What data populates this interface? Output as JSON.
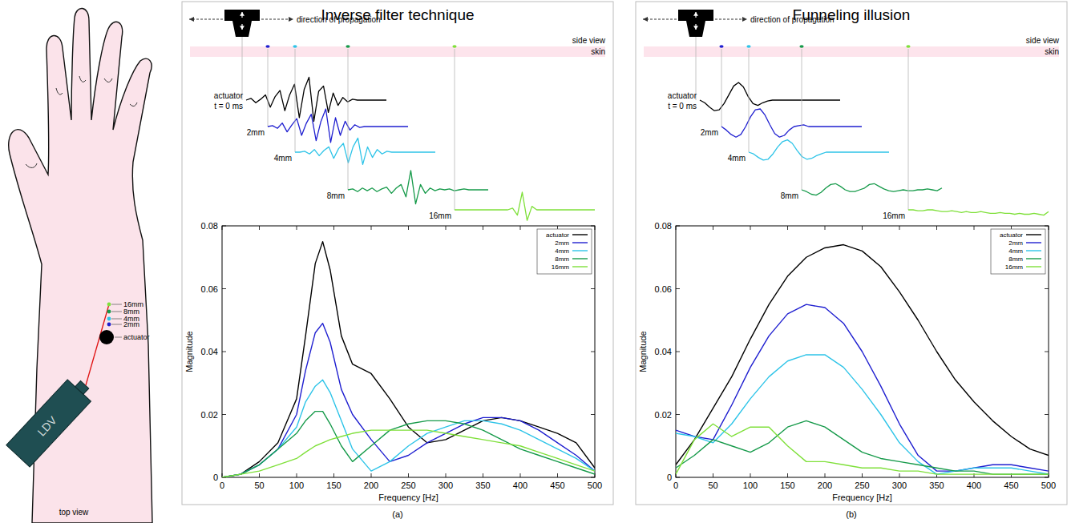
{
  "figure": {
    "arm": {
      "labels": [
        "16mm",
        "8mm",
        "4mm",
        "2mm",
        "actuator"
      ],
      "device": "LDV",
      "view": "top view"
    },
    "panels": [
      {
        "title": "Inverse filter technique",
        "caption": "(a)",
        "propagation": "direction of propagation",
        "side_view": "side view",
        "skin": "skin",
        "traces": [
          {
            "label": "actuator",
            "sublabel": "t = 0 ms",
            "color": "#000000",
            "values": [
              0,
              0.1,
              -0.15,
              0.05,
              0.3,
              -0.4,
              0.2,
              0.55,
              -0.6,
              0.3,
              0.9,
              -1.0,
              0.6,
              1.3,
              -1.2,
              0.5,
              0.8,
              -0.7,
              0.4,
              -0.3,
              0.15,
              -0.1,
              0.05,
              0,
              0,
              0,
              0,
              0,
              0,
              0
            ]
          },
          {
            "label": "2mm",
            "color": "#1f1fd0",
            "values": [
              0,
              0.05,
              -0.1,
              0.2,
              -0.3,
              0.1,
              0.45,
              -0.5,
              0.2,
              0.7,
              -0.8,
              0.3,
              1.0,
              -0.9,
              0.5,
              -0.5,
              0.3,
              -0.2,
              0.1,
              -0.05,
              0,
              0,
              0,
              0,
              0,
              0,
              0,
              0,
              0,
              0
            ]
          },
          {
            "label": "4mm",
            "color": "#2ec4e8",
            "values": [
              0,
              0,
              0.05,
              -0.1,
              0.15,
              -0.2,
              0.1,
              0.3,
              -0.35,
              0.2,
              0.5,
              -0.6,
              0.3,
              0.8,
              -0.7,
              0.3,
              -0.3,
              0.15,
              -0.1,
              0.05,
              0,
              0,
              0,
              0,
              0,
              0,
              0,
              0,
              0,
              0
            ]
          },
          {
            "label": "8mm",
            "color": "#169a4a",
            "values": [
              0,
              0.05,
              -0.1,
              0.1,
              -0.05,
              0.1,
              -0.1,
              0.05,
              0.15,
              -0.2,
              0.1,
              0.3,
              -0.4,
              1.1,
              -0.8,
              0.3,
              -0.2,
              0.1,
              -0.05,
              0.05,
              0,
              0.05,
              -0.05,
              0,
              0.05,
              0,
              0,
              0,
              0,
              0
            ]
          },
          {
            "label": "16mm",
            "color": "#7fe03a",
            "values": [
              0,
              0,
              0,
              0,
              0,
              0,
              0,
              0,
              0,
              0,
              0,
              0,
              0.1,
              -0.3,
              1.0,
              -0.6,
              0.2,
              0,
              0,
              0,
              0,
              0,
              0,
              0,
              0,
              0,
              0,
              0,
              0,
              0
            ]
          }
        ]
      },
      {
        "title": "Funneling illusion",
        "caption": "(b)",
        "propagation": "direction of propagation",
        "side_view": "side view",
        "skin": "skin",
        "traces": [
          {
            "label": "actuator",
            "sublabel": "t = 0 ms",
            "color": "#000000",
            "values": [
              0,
              -0.15,
              -0.4,
              -0.6,
              -0.55,
              -0.2,
              0.3,
              0.8,
              1.0,
              0.75,
              0.2,
              -0.2,
              -0.3,
              -0.15,
              -0.05,
              0,
              0,
              0,
              0,
              0,
              0,
              0,
              0,
              0,
              0,
              0,
              0,
              0,
              0,
              0
            ]
          },
          {
            "label": "2mm",
            "color": "#1f1fd0",
            "values": [
              0,
              -0.2,
              -0.45,
              -0.6,
              -0.45,
              0,
              0.55,
              0.95,
              1.0,
              0.65,
              0.1,
              -0.4,
              -0.6,
              -0.5,
              -0.2,
              0,
              0.05,
              0.1,
              0,
              0,
              0,
              0,
              0,
              0,
              0,
              0,
              0,
              0,
              0,
              0
            ]
          },
          {
            "label": "4mm",
            "color": "#2ec4e8",
            "values": [
              0,
              -0.1,
              -0.3,
              -0.45,
              -0.4,
              -0.1,
              0.3,
              0.6,
              0.7,
              0.5,
              0.1,
              -0.25,
              -0.4,
              -0.35,
              -0.2,
              -0.1,
              0,
              0,
              0,
              0,
              0,
              0,
              0,
              0,
              0,
              0,
              0,
              0,
              0,
              0
            ]
          },
          {
            "label": "8mm",
            "color": "#169a4a",
            "values": [
              0,
              -0.1,
              -0.25,
              -0.3,
              -0.15,
              0.1,
              0.3,
              0.35,
              0.2,
              0,
              -0.1,
              -0.1,
              0,
              0.1,
              0.3,
              0.35,
              0.2,
              0.05,
              -0.05,
              -0.1,
              -0.05,
              0,
              -0.05,
              -0.05,
              0,
              0,
              0.05,
              0,
              -0.05,
              0.1
            ]
          },
          {
            "label": "16mm",
            "color": "#7fe03a",
            "values": [
              0,
              0,
              -0.05,
              -0.05,
              0,
              0,
              -0.05,
              -0.1,
              -0.1,
              -0.05,
              -0.1,
              -0.15,
              -0.1,
              -0.15,
              -0.15,
              -0.1,
              -0.15,
              -0.2,
              -0.2,
              -0.15,
              -0.2,
              -0.2,
              -0.25,
              -0.2,
              -0.25,
              -0.25,
              -0.2,
              -0.25,
              -0.3,
              -0.1
            ]
          }
        ]
      }
    ]
  },
  "chart_data": [
    {
      "type": "line",
      "x_label": "Frequency [Hz]",
      "y_label": "Magnitude",
      "legend": "upper right",
      "grid": false,
      "xlim": [
        0,
        500
      ],
      "ylim": [
        0,
        0.08
      ],
      "xticks": [
        0,
        50,
        100,
        150,
        200,
        250,
        300,
        350,
        400,
        450,
        500
      ],
      "yticks": [
        0,
        0.02,
        0.04,
        0.06,
        0.08
      ],
      "x": [
        0,
        25,
        50,
        75,
        100,
        112,
        125,
        135,
        145,
        160,
        175,
        200,
        225,
        250,
        275,
        300,
        325,
        350,
        375,
        400,
        425,
        450,
        475,
        500
      ],
      "series": [
        {
          "name": "actuator",
          "color": "#000000",
          "values": [
            0,
            0.001,
            0.005,
            0.011,
            0.025,
            0.045,
            0.068,
            0.075,
            0.066,
            0.045,
            0.036,
            0.033,
            0.025,
            0.016,
            0.011,
            0.012,
            0.015,
            0.018,
            0.019,
            0.018,
            0.016,
            0.014,
            0.011,
            0.003
          ]
        },
        {
          "name": "2mm",
          "color": "#1f1fd0",
          "values": [
            0,
            0.001,
            0.004,
            0.009,
            0.02,
            0.034,
            0.046,
            0.049,
            0.043,
            0.028,
            0.02,
            0.012,
            0.005,
            0.007,
            0.011,
            0.014,
            0.017,
            0.019,
            0.019,
            0.018,
            0.015,
            0.011,
            0.007,
            0.002
          ]
        },
        {
          "name": "4mm",
          "color": "#2ec4e8",
          "values": [
            0,
            0.001,
            0.004,
            0.009,
            0.016,
            0.024,
            0.029,
            0.031,
            0.027,
            0.018,
            0.009,
            0.002,
            0.005,
            0.01,
            0.014,
            0.016,
            0.018,
            0.018,
            0.017,
            0.015,
            0.012,
            0.009,
            0.006,
            0.002
          ]
        },
        {
          "name": "8mm",
          "color": "#169a4a",
          "values": [
            0,
            0.001,
            0.004,
            0.009,
            0.014,
            0.018,
            0.021,
            0.021,
            0.017,
            0.01,
            0.005,
            0.01,
            0.015,
            0.017,
            0.018,
            0.018,
            0.017,
            0.015,
            0.012,
            0.009,
            0.007,
            0.005,
            0.003,
            0.001
          ]
        },
        {
          "name": "16mm",
          "color": "#7fe03a",
          "values": [
            0,
            0.001,
            0.002,
            0.004,
            0.006,
            0.008,
            0.01,
            0.011,
            0.012,
            0.013,
            0.014,
            0.015,
            0.015,
            0.015,
            0.015,
            0.014,
            0.013,
            0.012,
            0.011,
            0.01,
            0.008,
            0.006,
            0.004,
            0.002
          ]
        }
      ]
    },
    {
      "type": "line",
      "x_label": "Frequency [Hz]",
      "y_label": "Magnitude",
      "legend": "upper right",
      "grid": false,
      "xlim": [
        0,
        500
      ],
      "ylim": [
        0,
        0.08
      ],
      "xticks": [
        0,
        50,
        100,
        150,
        200,
        250,
        300,
        350,
        400,
        450,
        500
      ],
      "yticks": [
        0,
        0.02,
        0.04,
        0.06,
        0.08
      ],
      "x": [
        0,
        25,
        50,
        75,
        100,
        125,
        150,
        175,
        200,
        225,
        250,
        275,
        300,
        325,
        350,
        375,
        400,
        425,
        450,
        475,
        500
      ],
      "series": [
        {
          "name": "actuator",
          "color": "#000000",
          "values": [
            0.004,
            0.012,
            0.022,
            0.032,
            0.044,
            0.055,
            0.064,
            0.07,
            0.073,
            0.074,
            0.072,
            0.067,
            0.059,
            0.05,
            0.04,
            0.031,
            0.024,
            0.018,
            0.013,
            0.009,
            0.007
          ]
        },
        {
          "name": "2mm",
          "color": "#1f1fd0",
          "values": [
            0.015,
            0.013,
            0.012,
            0.023,
            0.035,
            0.045,
            0.052,
            0.055,
            0.054,
            0.049,
            0.04,
            0.029,
            0.017,
            0.007,
            0.002,
            0.002,
            0.003,
            0.004,
            0.004,
            0.003,
            0.002
          ]
        },
        {
          "name": "4mm",
          "color": "#2ec4e8",
          "values": [
            0.014,
            0.013,
            0.011,
            0.017,
            0.025,
            0.032,
            0.037,
            0.039,
            0.039,
            0.035,
            0.028,
            0.02,
            0.011,
            0.005,
            0.001,
            0.002,
            0.003,
            0.003,
            0.003,
            0.002,
            0.001
          ]
        },
        {
          "name": "8mm",
          "color": "#169a4a",
          "values": [
            0.003,
            0.007,
            0.012,
            0.01,
            0.008,
            0.011,
            0.016,
            0.018,
            0.016,
            0.012,
            0.008,
            0.006,
            0.005,
            0.004,
            0.003,
            0.002,
            0.002,
            0.001,
            0.001,
            0.001,
            0.001
          ]
        },
        {
          "name": "16mm",
          "color": "#7fe03a",
          "values": [
            0.001,
            0.012,
            0.017,
            0.013,
            0.016,
            0.016,
            0.01,
            0.005,
            0.005,
            0.004,
            0.003,
            0.003,
            0.002,
            0.002,
            0.001,
            0.001,
            0.001,
            0.001,
            0.001,
            0.001,
            0.001
          ]
        }
      ]
    }
  ]
}
